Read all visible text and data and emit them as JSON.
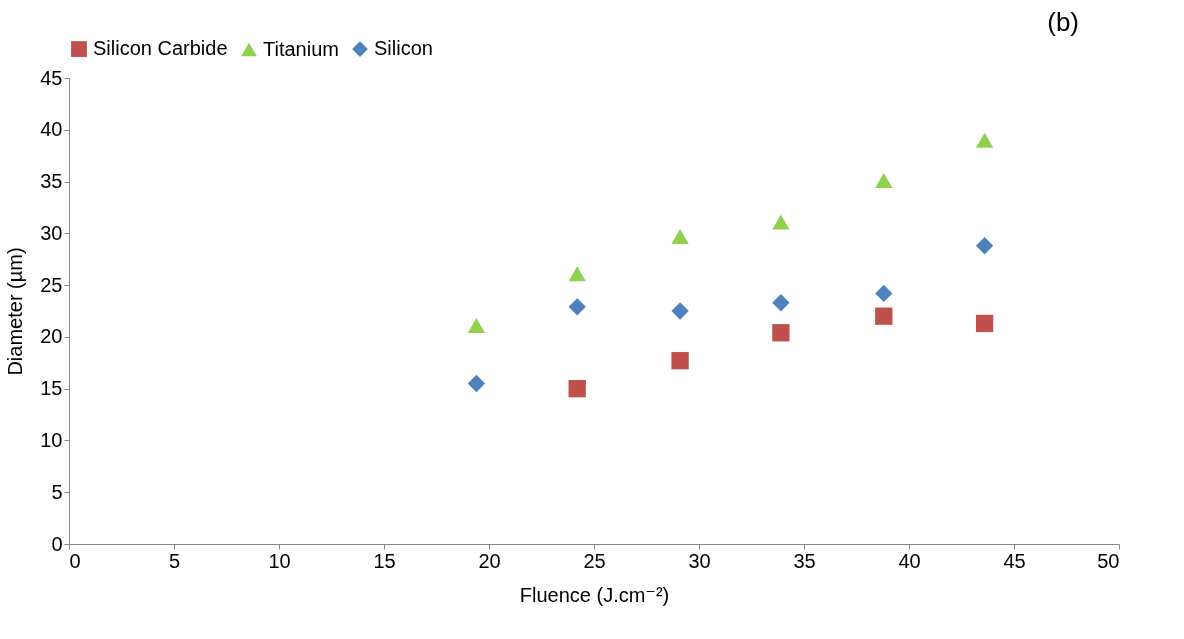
{
  "chart_data": {
    "type": "scatter",
    "xlabel": "Fluence (J.cm⁻²)",
    "ylabel": "Diameter (µm)",
    "annotations": [
      "(b)"
    ],
    "x": [
      19.4,
      24.2,
      29.1,
      33.9,
      38.8,
      43.6
    ],
    "series": [
      {
        "name": "Silicon Carbide",
        "color": "#c0504d",
        "marker": "square",
        "values": [
          null,
          15.0,
          17.7,
          20.4,
          22.0,
          21.3
        ]
      },
      {
        "name": "Titanium",
        "color": "#92d050",
        "marker": "triangle",
        "values": [
          21.1,
          26.1,
          29.7,
          31.1,
          35.1,
          39.0
        ]
      },
      {
        "name": "Silicon",
        "color": "#4f81bd",
        "marker": "diamond",
        "values": [
          15.5,
          22.9,
          22.5,
          23.3,
          24.2,
          28.8
        ]
      }
    ],
    "xlim": [
      0,
      50
    ],
    "xticks": [
      0,
      5,
      10,
      15,
      20,
      25,
      30,
      35,
      40,
      45,
      50
    ],
    "ylim": [
      0,
      45
    ],
    "yticks": [
      0,
      5,
      10,
      15,
      20,
      25,
      30,
      35,
      40,
      45
    ],
    "grid": false,
    "legend": "top"
  }
}
